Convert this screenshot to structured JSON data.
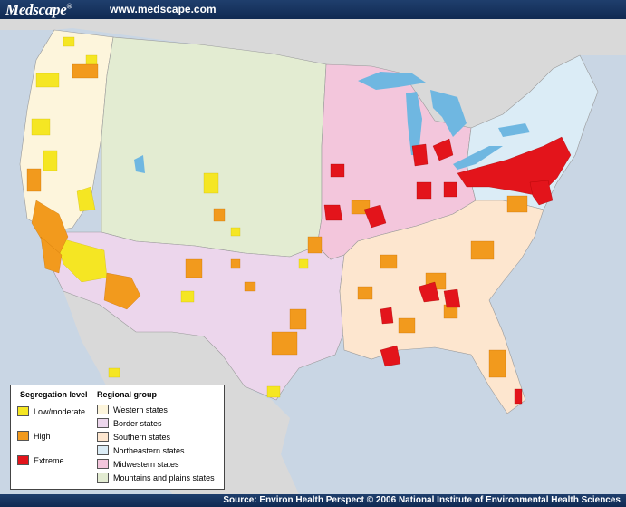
{
  "header": {
    "brand": "Medscape",
    "brand_reg": "®",
    "url": "www.medscape.com"
  },
  "footer": {
    "source": "Source: Environ Health Perspect © 2006 National Institute of Environmental Health Sciences"
  },
  "legend": {
    "segregation_title": "Segregation level",
    "segregation_levels": [
      {
        "label": "Low/moderate",
        "color": "#f5e623"
      },
      {
        "label": "High",
        "color": "#f29a1d"
      },
      {
        "label": "Extreme",
        "color": "#e3141b"
      }
    ],
    "region_title": "Regional group",
    "regions": [
      {
        "label": "Western states",
        "color": "#fdf5dc"
      },
      {
        "label": "Border states",
        "color": "#ecd6ec"
      },
      {
        "label": "Southern states",
        "color": "#fde6cf"
      },
      {
        "label": "Northeastern states",
        "color": "#dbecf6"
      },
      {
        "label": "Midwestern states",
        "color": "#f3c6dc"
      },
      {
        "label": "Mountains and plains states",
        "color": "#e3ecd2"
      }
    ]
  },
  "colors": {
    "water": "#c9d6e4",
    "outside_land": "#d9d9d9",
    "lakes": "#6fb7e1",
    "header_bg": "#163563"
  }
}
